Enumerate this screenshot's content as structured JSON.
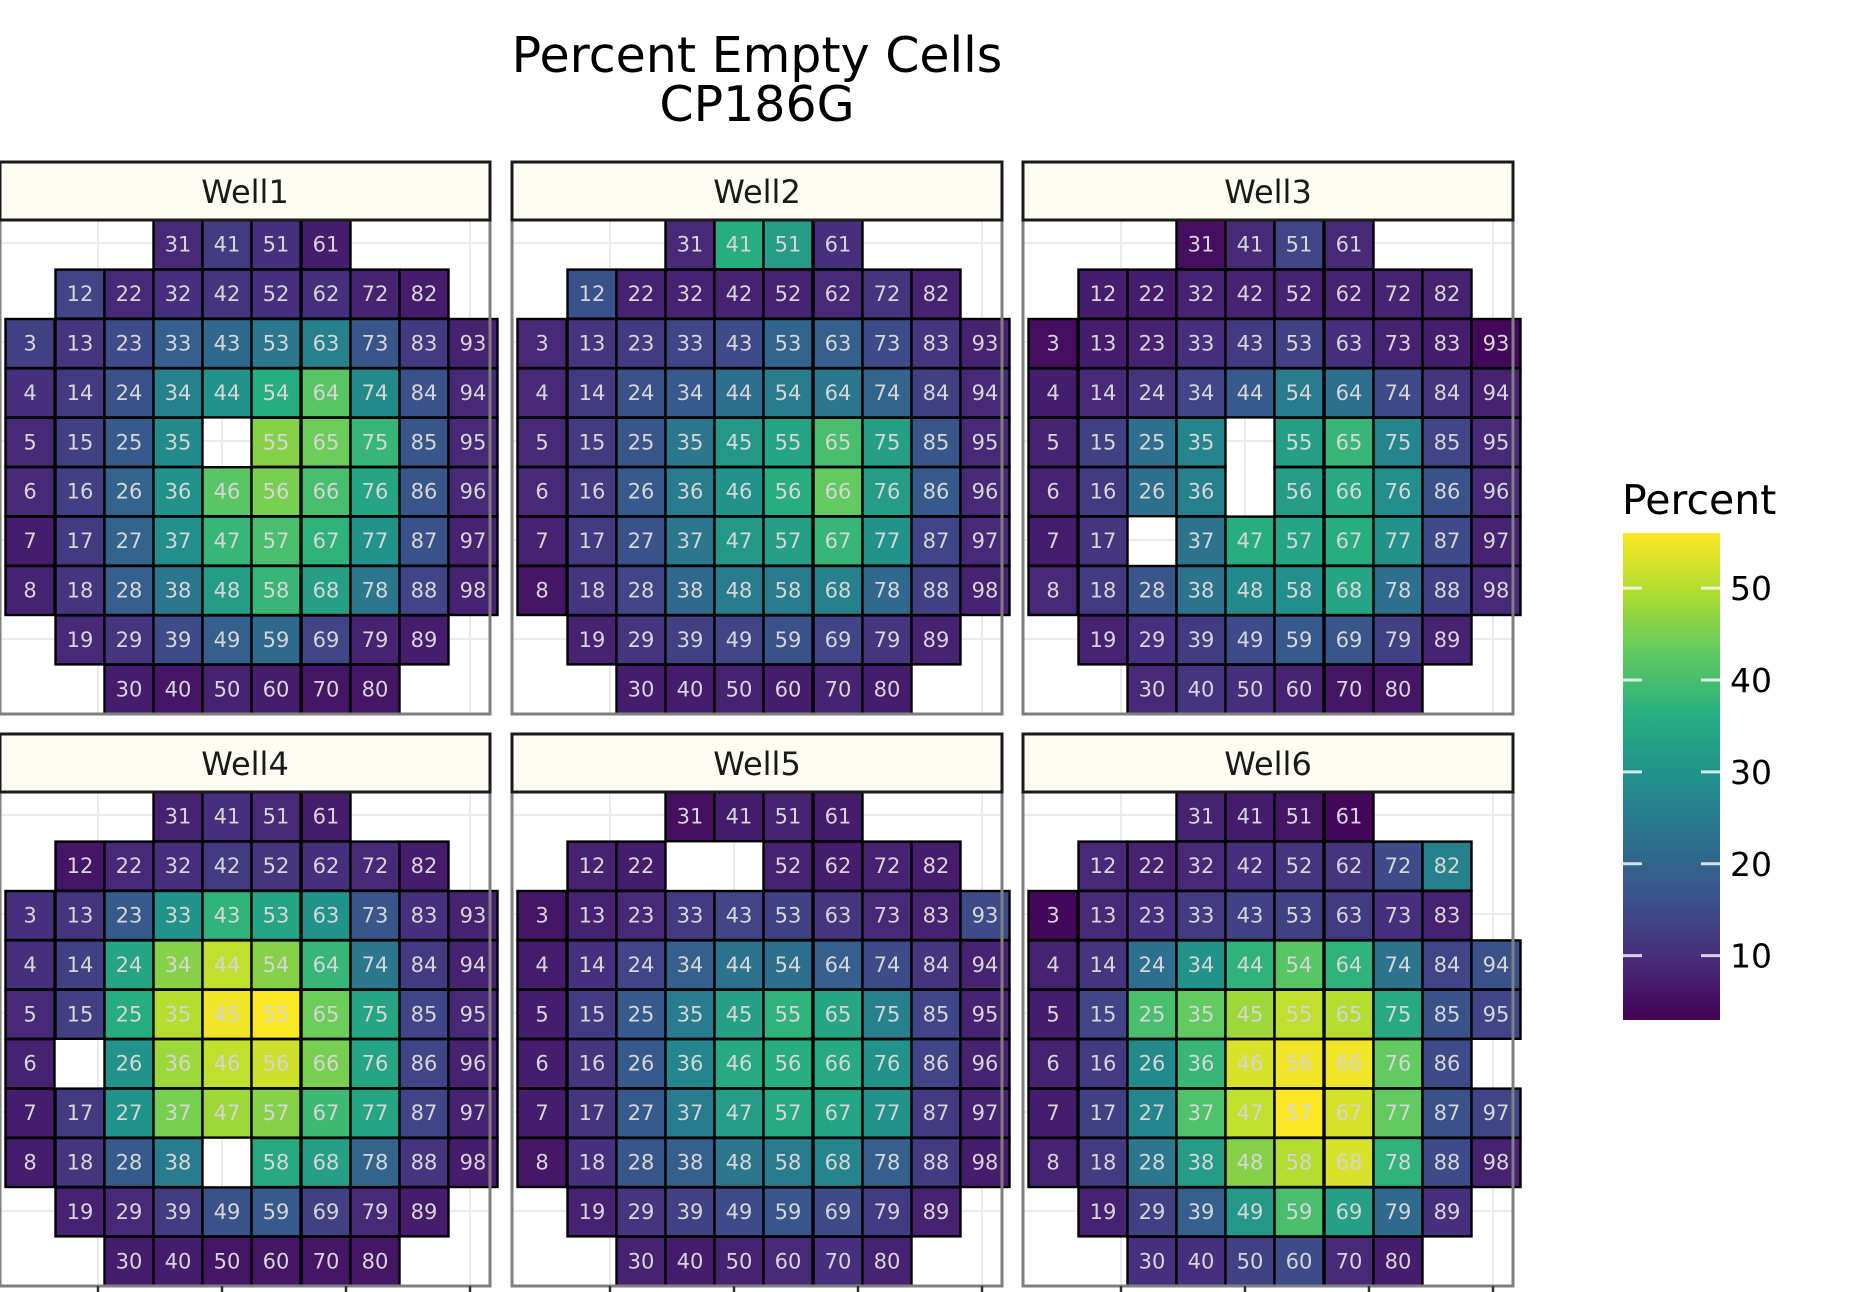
{
  "chart_data": {
    "type": "heatmap",
    "title": "Percent Empty Cells",
    "subtitle": "CP186G",
    "legend": {
      "title": "Percent",
      "ticks": [
        10,
        20,
        30,
        40,
        50
      ],
      "range": [
        3,
        56
      ],
      "colormap": "viridis",
      "placement": "right"
    },
    "grid": true,
    "row_layout": [
      [
        31,
        41,
        51,
        61
      ],
      [
        12,
        22,
        32,
        42,
        52,
        62,
        72,
        82
      ],
      [
        3,
        13,
        23,
        33,
        43,
        53,
        63,
        73,
        83,
        93
      ],
      [
        4,
        14,
        24,
        34,
        44,
        54,
        64,
        74,
        84,
        94
      ],
      [
        5,
        15,
        25,
        35,
        45,
        55,
        65,
        75,
        85,
        95
      ],
      [
        6,
        16,
        26,
        36,
        46,
        56,
        66,
        76,
        86,
        96
      ],
      [
        7,
        17,
        27,
        37,
        47,
        57,
        67,
        77,
        87,
        97
      ],
      [
        8,
        18,
        28,
        38,
        48,
        58,
        68,
        78,
        88,
        98
      ],
      [
        19,
        29,
        39,
        49,
        59,
        69,
        79,
        89
      ],
      [
        30,
        40,
        50,
        60,
        70,
        80
      ]
    ],
    "panels": [
      {
        "name": "Well1",
        "values": {
          "31": 9,
          "41": 12,
          "51": 10,
          "61": 7,
          "12": 14,
          "22": 9,
          "32": 10,
          "42": 11,
          "52": 10,
          "62": 10,
          "72": 8,
          "82": 7,
          "3": 13,
          "13": 11,
          "23": 15,
          "33": 19,
          "43": 21,
          "53": 24,
          "63": 26,
          "73": 17,
          "83": 12,
          "93": 8,
          "4": 10,
          "14": 12,
          "24": 16,
          "34": 26,
          "44": 30,
          "54": 36,
          "64": 42,
          "74": 28,
          "84": 16,
          "94": 9,
          "5": 9,
          "15": 13,
          "25": 18,
          "35": 28,
          "55": 46,
          "65": 44,
          "75": 38,
          "85": 17,
          "95": 9,
          "6": 9,
          "16": 13,
          "26": 20,
          "36": 30,
          "46": 42,
          "56": 45,
          "66": 40,
          "76": 34,
          "86": 17,
          "96": 9,
          "7": 7,
          "17": 12,
          "27": 20,
          "37": 29,
          "47": 38,
          "57": 40,
          "67": 37,
          "77": 30,
          "87": 16,
          "97": 8,
          "8": 8,
          "18": 11,
          "28": 19,
          "38": 24,
          "48": 32,
          "58": 38,
          "68": 33,
          "78": 24,
          "88": 14,
          "98": 8,
          "19": 9,
          "29": 11,
          "39": 15,
          "49": 19,
          "59": 21,
          "69": 14,
          "79": 8,
          "89": 7,
          "30": 7,
          "40": 6,
          "50": 8,
          "60": 7,
          "70": 6,
          "80": 6
        }
      },
      {
        "name": "Well2",
        "values": {
          "31": 9,
          "41": 36,
          "51": 32,
          "61": 10,
          "12": 16,
          "22": 8,
          "32": 8,
          "42": 8,
          "52": 8,
          "62": 9,
          "72": 11,
          "82": 8,
          "3": 9,
          "13": 11,
          "23": 12,
          "33": 14,
          "43": 15,
          "53": 20,
          "63": 19,
          "73": 15,
          "83": 11,
          "93": 8,
          "4": 9,
          "14": 12,
          "24": 16,
          "34": 18,
          "44": 22,
          "54": 25,
          "64": 24,
          "74": 20,
          "84": 13,
          "94": 9,
          "5": 9,
          "15": 12,
          "25": 17,
          "35": 24,
          "45": 31,
          "55": 34,
          "65": 40,
          "75": 33,
          "85": 17,
          "95": 9,
          "6": 9,
          "16": 12,
          "26": 18,
          "36": 25,
          "46": 30,
          "56": 36,
          "66": 43,
          "76": 32,
          "86": 18,
          "96": 9,
          "7": 8,
          "17": 12,
          "27": 16,
          "37": 24,
          "47": 31,
          "57": 33,
          "67": 38,
          "77": 30,
          "87": 14,
          "97": 9,
          "8": 6,
          "18": 11,
          "28": 14,
          "38": 21,
          "48": 25,
          "58": 25,
          "68": 26,
          "78": 21,
          "88": 13,
          "98": 8,
          "19": 8,
          "29": 11,
          "39": 13,
          "49": 14,
          "59": 16,
          "69": 14,
          "79": 11,
          "89": 8,
          "30": 7,
          "40": 7,
          "50": 8,
          "60": 7,
          "70": 8,
          "80": 7
        }
      },
      {
        "name": "Well3",
        "values": {
          "31": 5,
          "41": 9,
          "51": 14,
          "61": 9,
          "12": 7,
          "22": 7,
          "32": 8,
          "42": 8,
          "52": 8,
          "62": 8,
          "72": 8,
          "82": 8,
          "3": 5,
          "13": 7,
          "23": 8,
          "33": 10,
          "43": 12,
          "53": 13,
          "63": 10,
          "73": 8,
          "83": 7,
          "93": 4,
          "4": 7,
          "14": 9,
          "24": 11,
          "34": 14,
          "44": 18,
          "54": 25,
          "64": 22,
          "74": 15,
          "84": 11,
          "94": 8,
          "5": 8,
          "15": 13,
          "25": 22,
          "35": 27,
          "55": 33,
          "65": 38,
          "75": 27,
          "85": 14,
          "95": 9,
          "6": 8,
          "16": 12,
          "26": 22,
          "36": 26,
          "56": 32,
          "66": 35,
          "76": 29,
          "86": 16,
          "96": 9,
          "7": 7,
          "17": 11,
          "37": 23,
          "47": 36,
          "57": 34,
          "67": 36,
          "77": 30,
          "87": 15,
          "97": 8,
          "8": 9,
          "18": 12,
          "28": 17,
          "38": 23,
          "48": 28,
          "58": 29,
          "68": 34,
          "78": 22,
          "88": 13,
          "98": 9,
          "19": 8,
          "29": 10,
          "39": 12,
          "49": 15,
          "59": 18,
          "69": 17,
          "79": 13,
          "89": 8,
          "30": 9,
          "40": 11,
          "50": 10,
          "60": 8,
          "70": 6,
          "80": 6
        }
      },
      {
        "name": "Well4",
        "values": {
          "31": 8,
          "41": 10,
          "51": 9,
          "61": 7,
          "12": 6,
          "22": 9,
          "32": 10,
          "42": 12,
          "52": 11,
          "62": 10,
          "72": 9,
          "82": 7,
          "3": 10,
          "13": 11,
          "23": 18,
          "33": 30,
          "43": 37,
          "53": 34,
          "63": 30,
          "73": 17,
          "83": 10,
          "93": 8,
          "4": 10,
          "14": 13,
          "24": 34,
          "34": 46,
          "44": 51,
          "54": 46,
          "64": 38,
          "74": 24,
          "84": 12,
          "94": 8,
          "5": 9,
          "15": 13,
          "25": 36,
          "35": 50,
          "45": 55,
          "55": 56,
          "65": 44,
          "75": 34,
          "85": 14,
          "95": 9,
          "6": 8,
          "26": 30,
          "36": 48,
          "46": 51,
          "56": 52,
          "66": 45,
          "76": 34,
          "86": 14,
          "96": 8,
          "7": 7,
          "17": 12,
          "27": 30,
          "37": 45,
          "47": 48,
          "57": 46,
          "67": 39,
          "77": 34,
          "87": 14,
          "97": 8,
          "8": 7,
          "18": 11,
          "28": 18,
          "38": 25,
          "58": 35,
          "68": 33,
          "78": 20,
          "88": 11,
          "98": 7,
          "19": 8,
          "29": 9,
          "39": 12,
          "49": 16,
          "59": 18,
          "69": 13,
          "79": 9,
          "89": 7,
          "30": 7,
          "40": 7,
          "50": 6,
          "60": 6,
          "70": 6,
          "80": 6
        }
      },
      {
        "name": "Well5",
        "values": {
          "31": 5,
          "41": 7,
          "51": 8,
          "61": 7,
          "12": 8,
          "22": 7,
          "52": 8,
          "62": 7,
          "72": 8,
          "82": 7,
          "3": 6,
          "13": 8,
          "23": 9,
          "33": 12,
          "43": 14,
          "53": 13,
          "63": 11,
          "73": 9,
          "83": 8,
          "93": 15,
          "4": 7,
          "14": 10,
          "24": 14,
          "34": 19,
          "44": 23,
          "54": 22,
          "64": 19,
          "74": 15,
          "84": 11,
          "94": 8,
          "5": 7,
          "15": 12,
          "25": 18,
          "35": 25,
          "45": 33,
          "55": 37,
          "65": 34,
          "75": 26,
          "85": 14,
          "95": 8,
          "6": 7,
          "16": 11,
          "26": 18,
          "36": 27,
          "46": 35,
          "56": 36,
          "66": 35,
          "76": 30,
          "86": 14,
          "96": 8,
          "7": 7,
          "17": 11,
          "27": 18,
          "37": 25,
          "47": 32,
          "57": 35,
          "67": 34,
          "77": 30,
          "87": 12,
          "97": 8,
          "8": 6,
          "18": 10,
          "28": 17,
          "38": 19,
          "48": 24,
          "58": 25,
          "68": 27,
          "78": 19,
          "88": 12,
          "98": 7,
          "19": 8,
          "29": 11,
          "39": 13,
          "49": 15,
          "59": 17,
          "69": 15,
          "79": 12,
          "89": 8,
          "30": 8,
          "40": 7,
          "50": 8,
          "60": 9,
          "70": 10,
          "80": 8
        }
      },
      {
        "name": "Well6",
        "values": {
          "31": 8,
          "41": 7,
          "51": 6,
          "61": 4,
          "12": 9,
          "22": 8,
          "32": 9,
          "42": 10,
          "52": 11,
          "62": 11,
          "72": 15,
          "82": 26,
          "3": 4,
          "13": 9,
          "23": 10,
          "33": 12,
          "43": 13,
          "53": 13,
          "63": 12,
          "73": 10,
          "83": 8,
          "94": 16,
          "4": 8,
          "14": 11,
          "24": 22,
          "34": 30,
          "44": 37,
          "54": 42,
          "64": 37,
          "74": 23,
          "84": 14,
          "5": 7,
          "15": 14,
          "25": 40,
          "35": 43,
          "45": 48,
          "55": 51,
          "65": 50,
          "75": 35,
          "85": 16,
          "95": 14,
          "6": 8,
          "16": 12,
          "26": 28,
          "36": 38,
          "46": 53,
          "56": 55,
          "66": 55,
          "76": 43,
          "86": 15,
          "7": 7,
          "17": 13,
          "27": 27,
          "37": 41,
          "47": 51,
          "57": 56,
          "67": 53,
          "77": 43,
          "87": 16,
          "97": 14,
          "8": 8,
          "18": 12,
          "28": 24,
          "38": 32,
          "48": 46,
          "58": 50,
          "68": 53,
          "78": 37,
          "88": 15,
          "98": 8,
          "19": 8,
          "29": 13,
          "39": 19,
          "49": 31,
          "59": 40,
          "69": 33,
          "79": 21,
          "89": 10,
          "30": 10,
          "40": 10,
          "50": 13,
          "60": 15,
          "70": 9,
          "80": 7
        }
      }
    ]
  }
}
